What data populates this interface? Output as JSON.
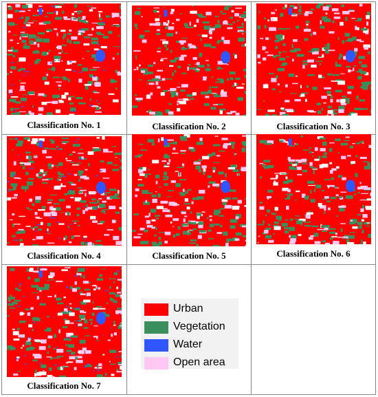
{
  "panels": [
    {
      "caption": "Classification No. 1"
    },
    {
      "caption": "Classification No. 2"
    },
    {
      "caption": "Classification No. 3"
    },
    {
      "caption": "Classification No. 4"
    },
    {
      "caption": "Classification No. 5"
    },
    {
      "caption": "Classification No. 6"
    },
    {
      "caption": "Classification No. 7"
    }
  ],
  "legend": {
    "items": [
      {
        "label": "Urban",
        "color": "#ff0000"
      },
      {
        "label": "Vegetation",
        "color": "#3a8f5c"
      },
      {
        "label": "Water",
        "color": "#3056ff"
      },
      {
        "label": "Open area",
        "color": "#ffc8f4"
      }
    ]
  }
}
